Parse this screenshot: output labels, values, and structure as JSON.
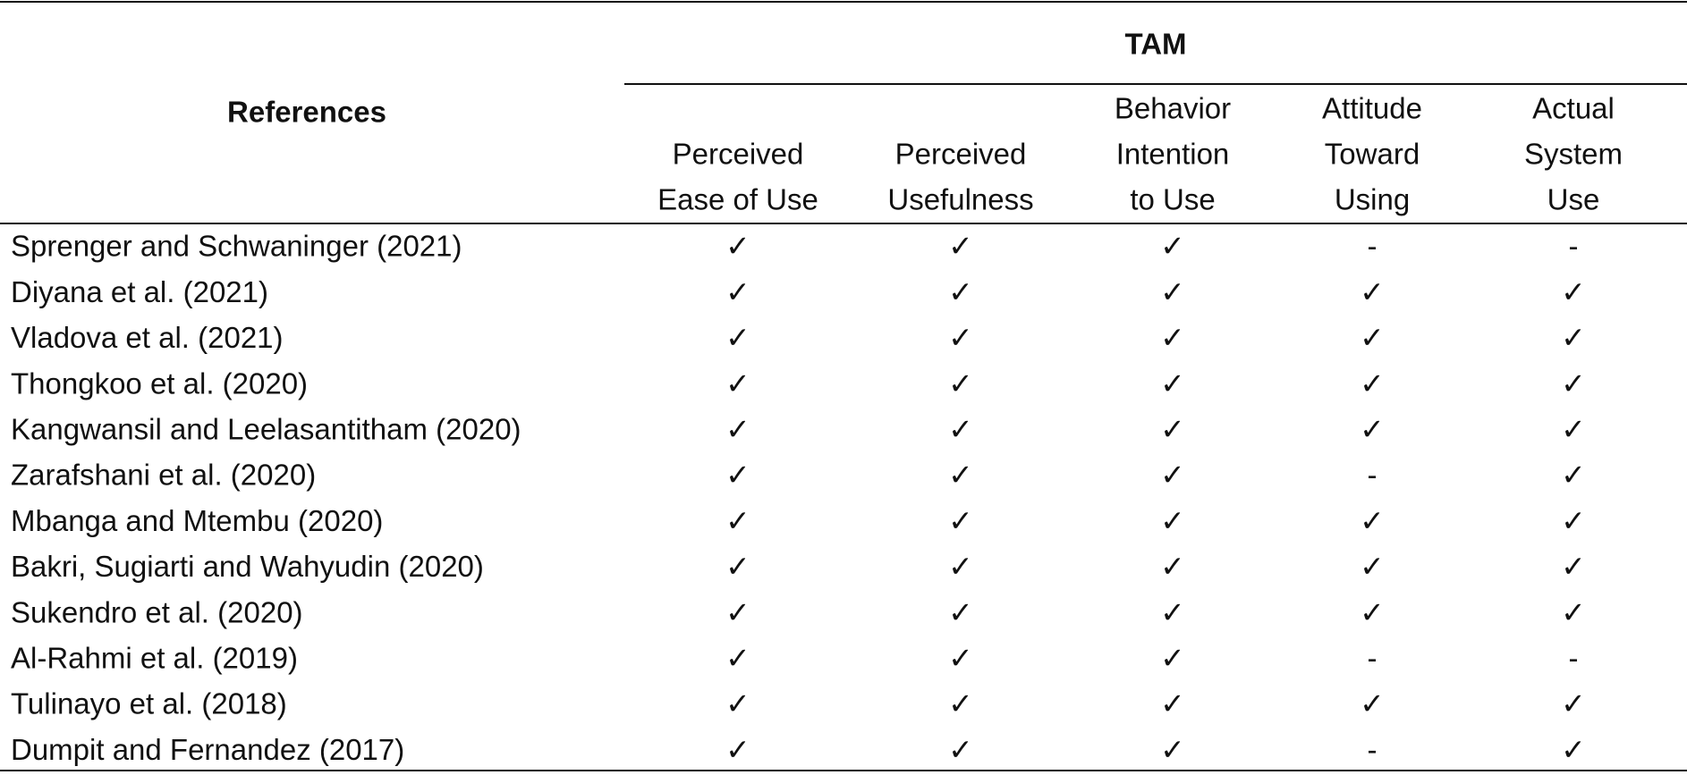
{
  "header": {
    "references": "References",
    "group": "TAM"
  },
  "columns": [
    {
      "lines": [
        "Perceived",
        "Ease of Use"
      ]
    },
    {
      "lines": [
        "Perceived",
        "Usefulness"
      ]
    },
    {
      "lines": [
        "Behavior",
        "Intention",
        "to Use"
      ]
    },
    {
      "lines": [
        "Attitude",
        "Toward",
        "Using"
      ]
    },
    {
      "lines": [
        "Actual",
        "System",
        "Use"
      ]
    }
  ],
  "rows": [
    {
      "reference": "Sprenger and Schwaninger (2021)",
      "cells": [
        "✓",
        "✓",
        "✓",
        "-",
        "-"
      ]
    },
    {
      "reference": "Diyana et al. (2021)",
      "cells": [
        "✓",
        "✓",
        "✓",
        "✓",
        "✓"
      ]
    },
    {
      "reference": "Vladova et al. (2021)",
      "cells": [
        "✓",
        "✓",
        "✓",
        "✓",
        "✓"
      ]
    },
    {
      "reference": "Thongkoo et al. (2020)",
      "cells": [
        "✓",
        "✓",
        "✓",
        "✓",
        "✓"
      ]
    },
    {
      "reference": "Kangwansil and Leelasantitham (2020)",
      "cells": [
        "✓",
        "✓",
        "✓",
        "✓",
        "✓"
      ]
    },
    {
      "reference": "Zarafshani et al. (2020)",
      "cells": [
        "✓",
        "✓",
        "✓",
        "-",
        "✓"
      ]
    },
    {
      "reference": "Mbanga and Mtembu (2020)",
      "cells": [
        "✓",
        "✓",
        "✓",
        "✓",
        "✓"
      ]
    },
    {
      "reference": "Bakri, Sugiarti and Wahyudin (2020)",
      "cells": [
        "✓",
        "✓",
        "✓",
        "✓",
        "✓"
      ]
    },
    {
      "reference": "Sukendro et al. (2020)",
      "cells": [
        "✓",
        "✓",
        "✓",
        "✓",
        "✓"
      ]
    },
    {
      "reference": "Al-Rahmi et al. (2019)",
      "cells": [
        "✓",
        "✓",
        "✓",
        "-",
        "-"
      ]
    },
    {
      "reference": "Tulinayo et al. (2018)",
      "cells": [
        "✓",
        "✓",
        "✓",
        "✓",
        "✓"
      ]
    },
    {
      "reference": "Dumpit and Fernandez (2017)",
      "cells": [
        "✓",
        "✓",
        "✓",
        "-",
        "✓"
      ]
    }
  ]
}
